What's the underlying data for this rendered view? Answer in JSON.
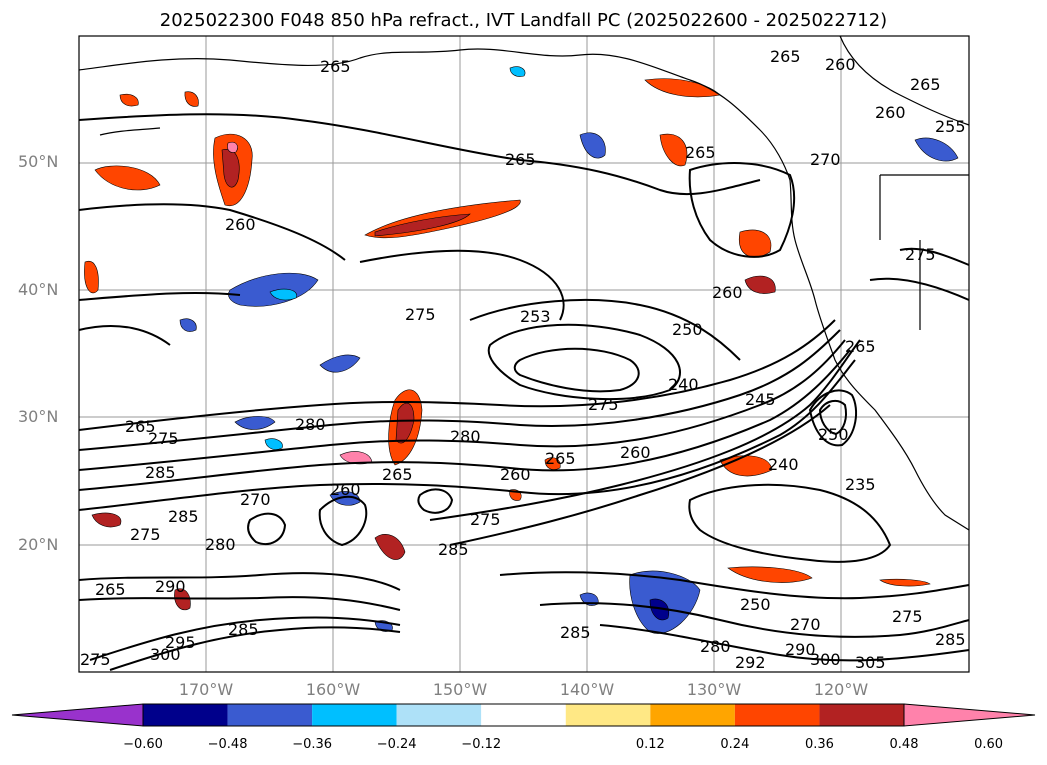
{
  "title": "2025022300 F048 850 hPa refract., IVT Landfall PC (2025022600 - 2025022712)",
  "map": {
    "lat_labels": [
      "50°N",
      "40°N",
      "30°N",
      "20°N"
    ],
    "lon_labels": [
      "170°W",
      "160°W",
      "150°W",
      "140°W",
      "130°W",
      "120°W"
    ],
    "contour_labels": [
      "265",
      "260",
      "265",
      "255",
      "270",
      "265",
      "260",
      "275",
      "253",
      "250",
      "260",
      "240",
      "245",
      "275",
      "280",
      "265",
      "275",
      "285",
      "280",
      "265",
      "260",
      "265",
      "270",
      "275",
      "280",
      "250",
      "240",
      "235",
      "285",
      "275",
      "260",
      "290",
      "265",
      "280",
      "285",
      "300",
      "305",
      "292",
      "275",
      "295",
      "300",
      "250",
      "260",
      "290"
    ]
  },
  "colorbar": {
    "tick_labels": [
      "−0.60",
      "−0.48",
      "−0.36",
      "−0.24",
      "−0.12",
      "0.12",
      "0.24",
      "0.36",
      "0.48",
      "0.60"
    ],
    "colors": [
      "#9932CC",
      "#00008B",
      "#3A5BD0",
      "#00BFFF",
      "#AEE1F8",
      "#FFFFFF",
      "#FFE885",
      "#FFA500",
      "#FF4500",
      "#B22222",
      "#FF82AB"
    ]
  }
}
